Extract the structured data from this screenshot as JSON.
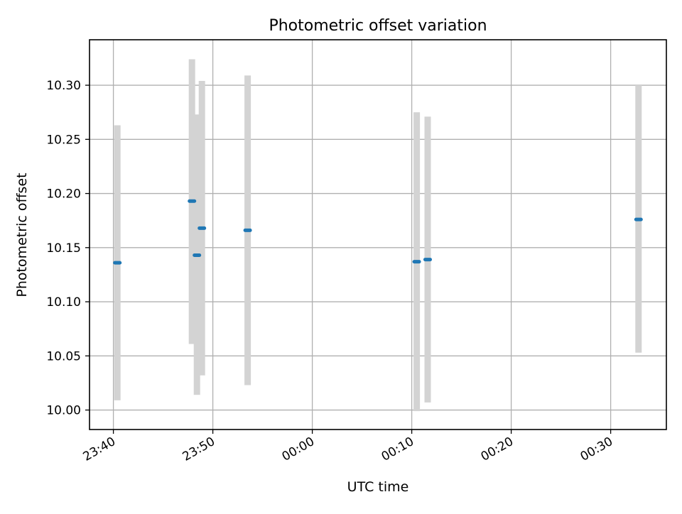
{
  "chart_data": {
    "type": "scatter",
    "title": "Photometric offset variation",
    "xlabel": "UTC time",
    "ylabel": "Photometric offset",
    "grid": true,
    "x_tick_labels": [
      "23:40",
      "23:50",
      "00:00",
      "00:10",
      "00:20",
      "00:30"
    ],
    "y_tick_labels": [
      "10.00",
      "10.05",
      "10.10",
      "10.15",
      "10.20",
      "10.25",
      "10.30"
    ],
    "x_ticks_minutes": [
      -20,
      -10,
      0,
      10,
      20,
      30
    ],
    "y_ticks": [
      10.0,
      10.05,
      10.1,
      10.15,
      10.2,
      10.25,
      10.3
    ],
    "xlim_minutes": [
      -22.4,
      35.6
    ],
    "ylim": [
      9.982,
      10.342
    ],
    "x_unit": "minutes relative to 00:00 UTC",
    "series": [
      {
        "x_minutes": [
          -19.6,
          -12.1,
          -11.6,
          -11.1,
          -6.5,
          10.5,
          11.6,
          32.8
        ],
        "x_times": [
          "23:40:24",
          "23:47:54",
          "23:48:24",
          "23:48:54",
          "23:53:30",
          "00:10:30",
          "00:11:36",
          "00:32:48"
        ],
        "y": [
          10.136,
          10.193,
          10.143,
          10.168,
          10.166,
          10.137,
          10.139,
          10.176
        ],
        "yerr_low": [
          10.009,
          10.061,
          10.014,
          10.032,
          10.023,
          9.999,
          10.007,
          10.053
        ],
        "yerr_high": [
          10.263,
          10.324,
          10.273,
          10.304,
          10.309,
          10.275,
          10.271,
          10.3
        ]
      }
    ],
    "colors": {
      "marker": "#1f77b4",
      "errorbar": "#d3d3d3",
      "grid": "#b0b0b0",
      "axes": "#000000"
    }
  }
}
